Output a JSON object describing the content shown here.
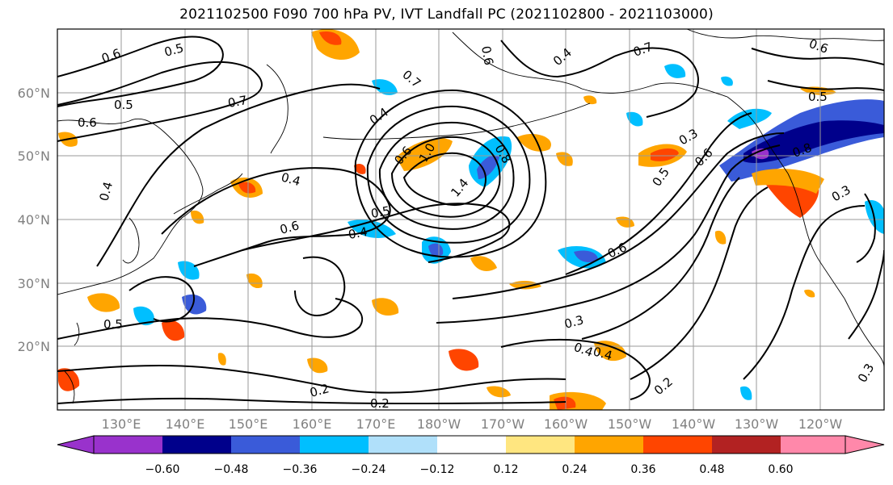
{
  "title": "2021102500 F090 700 hPa PV, IVT Landfall PC (2021102800 - 2021103000)",
  "lat_labels": [
    "60°N",
    "50°N",
    "40°N",
    "30°N",
    "20°N"
  ],
  "lon_labels": [
    "130°E",
    "140°E",
    "150°E",
    "160°E",
    "170°E",
    "180°W",
    "170°W",
    "160°W",
    "150°W",
    "140°W",
    "130°W",
    "120°W"
  ],
  "contour_labels": [
    "0.6",
    "0.5",
    "0.7",
    "0.5",
    "0.6",
    "0.4",
    "0.6",
    "1.0",
    "1.4",
    "0.8",
    "0.6",
    "0.4",
    "0.7",
    "0.4",
    "0.6",
    "0.3",
    "0.5",
    "0.6",
    "0.7",
    "0.5",
    "0.8",
    "0.3",
    "0.5",
    "0.4",
    "0.6",
    "0.4",
    "0.5",
    "0.6",
    "0.3",
    "0.4",
    "0.2",
    "0.2",
    "0.3",
    "0.2",
    "0.4"
  ],
  "colorbar": {
    "ticks": [
      "−0.60",
      "−0.48",
      "−0.36",
      "−0.24",
      "−0.12",
      "0.12",
      "0.24",
      "0.36",
      "0.48",
      "0.60"
    ],
    "colors": [
      "#9932cc",
      "#00008b",
      "#3a5bd9",
      "#00bfff",
      "#b0e0fa",
      "#ffffff",
      "#ffe680",
      "#ffa500",
      "#ff4500",
      "#b22222",
      "#ff88aa"
    ]
  }
}
